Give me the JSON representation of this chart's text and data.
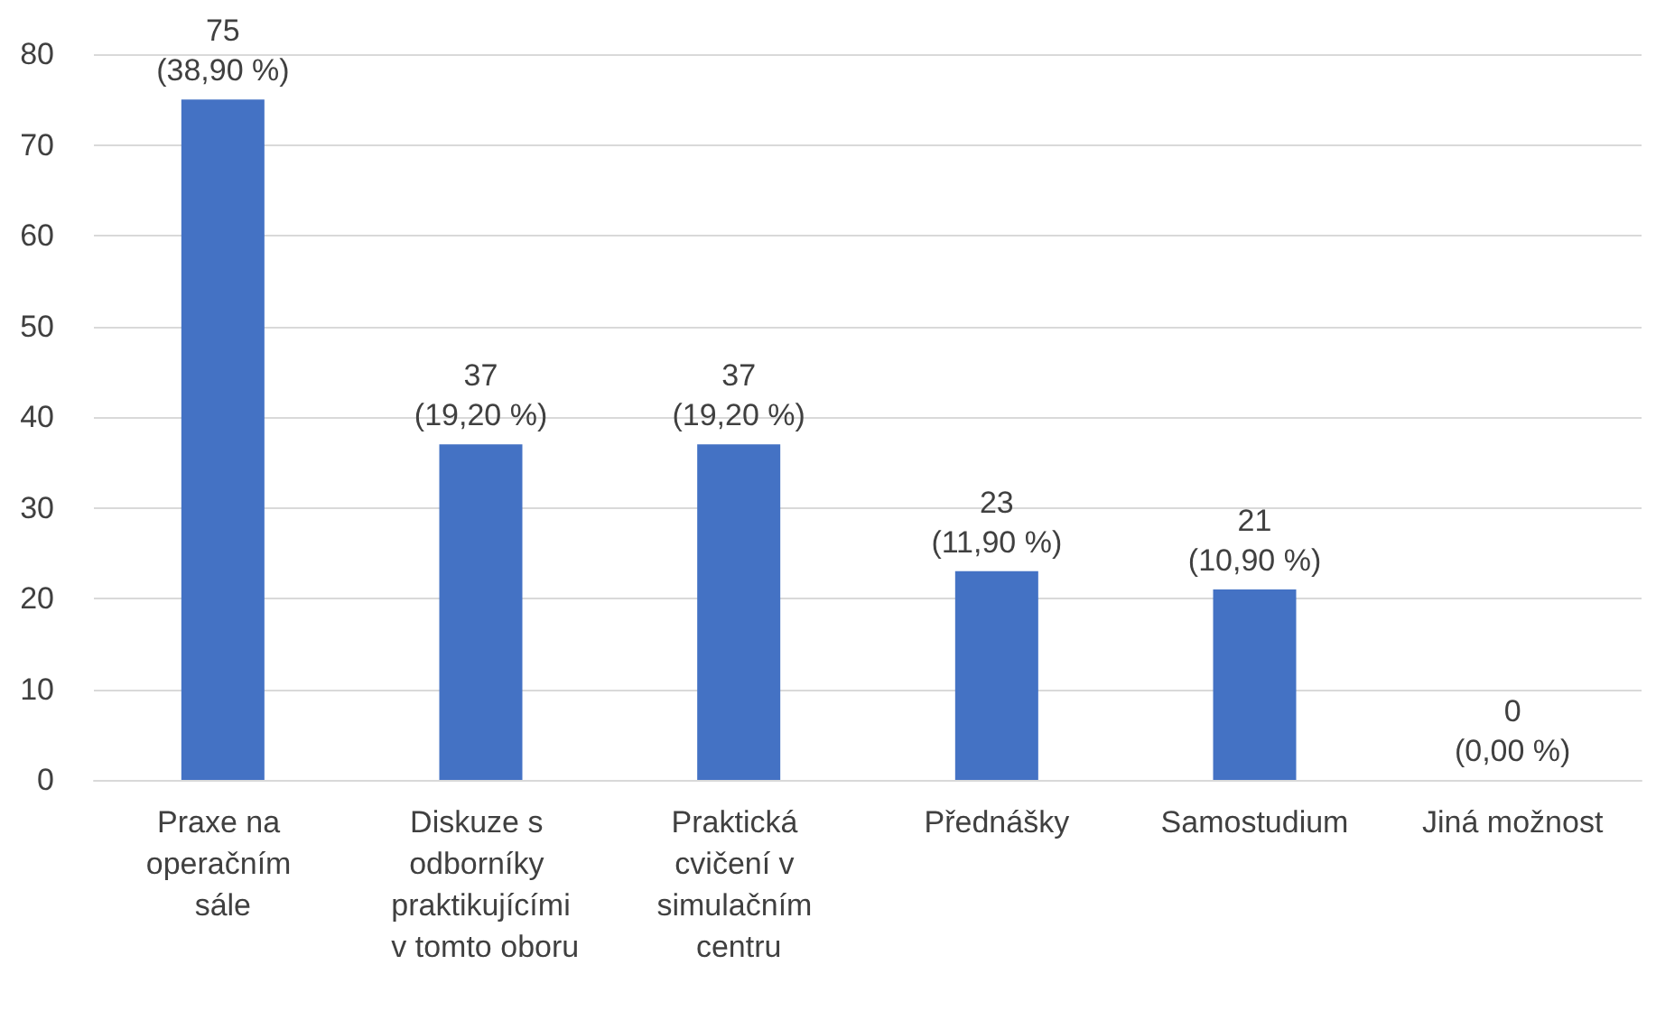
{
  "chart_data": {
    "type": "bar",
    "categories": [
      "Praxe na operačním sále",
      "Diskuze s odborníky praktikujícími v tomto oboru",
      "Praktická cvičení v simulačním centru",
      "Přednášky",
      "Samostudium",
      "Jiná možnost"
    ],
    "values": [
      75,
      37,
      37,
      23,
      21,
      0
    ],
    "value_labels": [
      "75\n(38,90 %)",
      "37\n(19,20 %)",
      "37\n(19,20 %)",
      "23\n(11,90 %)",
      "21\n(10,90 %)",
      "0\n(0,00 %)"
    ],
    "color": "#4472c4",
    "ylim": [
      0,
      80
    ],
    "yticks": [
      0,
      10,
      20,
      30,
      40,
      50,
      60,
      70,
      80
    ],
    "grid": "y"
  }
}
